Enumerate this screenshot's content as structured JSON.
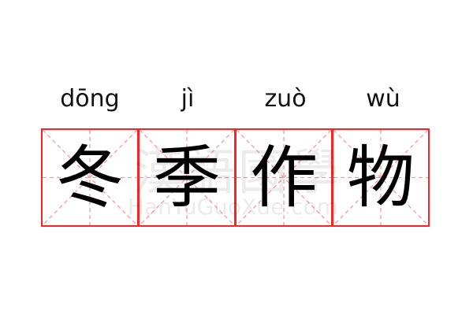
{
  "word": [
    {
      "pinyin": "dōng",
      "char": "冬"
    },
    {
      "pinyin": "jì",
      "char": "季"
    },
    {
      "pinyin": "zuò",
      "char": "作"
    },
    {
      "pinyin": "wù",
      "char": "物"
    }
  ],
  "watermark": {
    "chinese": "漢語國學",
    "latin": "HanYuGuoXue.com"
  },
  "colors": {
    "grid": "#ff2222",
    "guides": "#ff9999"
  }
}
